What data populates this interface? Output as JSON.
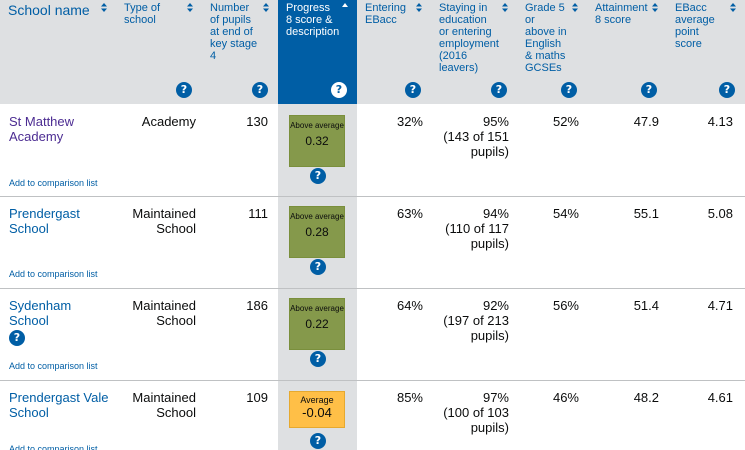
{
  "columns": [
    {
      "label": "School name"
    },
    {
      "label": "Type of school"
    },
    {
      "label": "Number of pupils at end of key stage 4"
    },
    {
      "label": "Progress 8 score & description"
    },
    {
      "label": "Entering EBacc"
    },
    {
      "label": "Staying in education or entering employment (2016 leavers)"
    },
    {
      "label": "Grade 5 or above in English & maths GCSEs"
    },
    {
      "label": "Attainment 8 score"
    },
    {
      "label": "EBacc average point score"
    }
  ],
  "help_icon_glyph": "?",
  "add_label": "Add to comparison list",
  "rows": [
    {
      "school": "St Matthew Academy",
      "type": "Academy",
      "pupils": "130",
      "p8_desc": "Above average",
      "p8_score": "0.32",
      "ebacc": "32%",
      "stay_pct": "95%",
      "stay_detail": "(143 of 151 pupils)",
      "grade5": "52%",
      "att8": "47.9",
      "ebacc_aps": "4.13"
    },
    {
      "school": "Prendergast School",
      "type": "Maintained School",
      "pupils": "111",
      "p8_desc": "Above average",
      "p8_score": "0.28",
      "ebacc": "63%",
      "stay_pct": "94%",
      "stay_detail": "(110 of 117 pupils)",
      "grade5": "54%",
      "att8": "55.1",
      "ebacc_aps": "5.08"
    },
    {
      "school": "Sydenham School",
      "type": "Maintained School",
      "pupils": "186",
      "p8_desc": "Above average",
      "p8_score": "0.22",
      "ebacc": "64%",
      "stay_pct": "92%",
      "stay_detail": "(197 of 213 pupils)",
      "grade5": "56%",
      "att8": "51.4",
      "ebacc_aps": "4.71"
    },
    {
      "school": "Prendergast Vale School",
      "type": "Maintained School",
      "pupils": "109",
      "p8_desc": "Average",
      "p8_score": "-0.04",
      "ebacc": "85%",
      "stay_pct": "97%",
      "stay_detail": "(100 of 103 pupils)",
      "grade5": "46%",
      "att8": "48.2",
      "ebacc_aps": "4.61"
    }
  ],
  "colors": {
    "header_bg": "#dee0e2",
    "active_header_bg": "#005ea5",
    "link": "#005ea5",
    "visited_link": "#4c2c92",
    "above_average_badge": "#85994b",
    "average_badge": "#ffbf47"
  }
}
